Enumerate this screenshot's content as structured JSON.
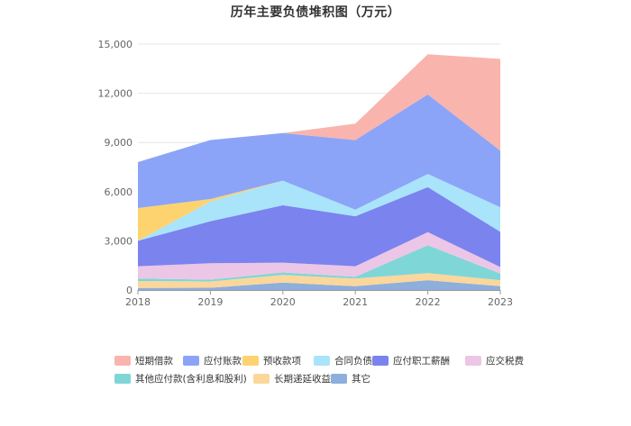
{
  "chart_data": {
    "type": "area",
    "stacked": true,
    "title": "历年主要负债堆积图（万元）",
    "x": [
      "2018",
      "2019",
      "2020",
      "2021",
      "2022",
      "2023"
    ],
    "y_tick_labels": [
      "0",
      "3,000",
      "6,000",
      "9,000",
      "12,000",
      "15,000"
    ],
    "ylim": [
      0,
      15000
    ],
    "grid": true,
    "legend_position": "bottom",
    "series": [
      {
        "name": "其它",
        "color": "#8eaedb",
        "values": [
          120,
          140,
          450,
          230,
          600,
          230
        ]
      },
      {
        "name": "长期递延收益",
        "color": "#fbd79c",
        "values": [
          430,
          380,
          470,
          470,
          430,
          370
        ]
      },
      {
        "name": "其他应付款(含利息和股利)",
        "color": "#7fd6d7",
        "values": [
          150,
          110,
          150,
          100,
          1700,
          400
        ]
      },
      {
        "name": "应交税费",
        "color": "#ecc6e6",
        "values": [
          750,
          1000,
          600,
          650,
          800,
          400
        ]
      },
      {
        "name": "应付职工薪酬",
        "color": "#7b83ee",
        "values": [
          1550,
          2570,
          3500,
          3050,
          2750,
          2150
        ]
      },
      {
        "name": "合同负债",
        "color": "#a9e4fa",
        "values": [
          0,
          1200,
          1500,
          400,
          800,
          1500
        ]
      },
      {
        "name": "预收款项",
        "color": "#fcd36f",
        "values": [
          2000,
          150,
          0,
          0,
          0,
          0
        ]
      },
      {
        "name": "应付账款",
        "color": "#8ba4f7",
        "values": [
          2800,
          3600,
          2900,
          4250,
          4850,
          3450
        ]
      },
      {
        "name": "短期借款",
        "color": "#f9b4ae",
        "values": [
          0,
          0,
          0,
          1000,
          2450,
          5600
        ]
      }
    ],
    "legend_order": [
      "短期借款",
      "应付账款",
      "预收款项",
      "合同负债",
      "应付职工薪酬",
      "应交税费",
      "其他应付款(含利息和股利)",
      "长期递延收益",
      "其它"
    ]
  }
}
